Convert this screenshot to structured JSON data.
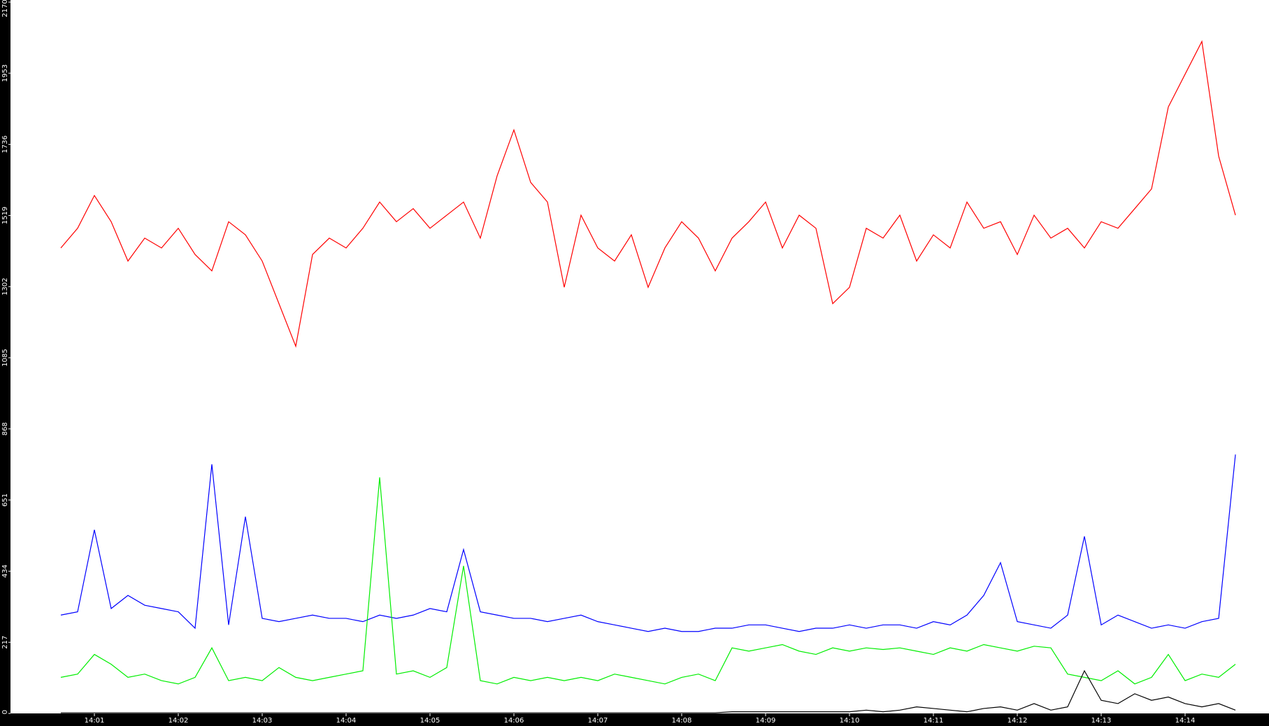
{
  "chart_data": {
    "type": "line",
    "x": [
      0.6,
      0.8,
      1,
      1.2,
      1.4,
      1.6,
      1.8,
      2,
      2.2,
      2.4,
      2.6,
      2.8,
      3,
      3.2,
      3.4,
      3.6,
      3.8,
      4,
      4.2,
      4.4,
      4.6,
      4.8,
      5,
      5.2,
      5.4,
      5.6,
      5.8,
      6,
      6.2,
      6.4,
      6.6,
      6.8,
      7,
      7.2,
      7.4,
      7.6,
      7.8,
      8,
      8.2,
      8.4,
      8.6,
      8.8,
      9,
      9.2,
      9.4,
      9.6,
      9.8,
      10,
      10.2,
      10.4,
      10.6,
      10.8,
      11,
      11.2,
      11.4,
      11.6,
      11.8,
      12,
      12.2,
      12.4,
      12.6,
      12.8,
      13,
      13.2,
      13.4,
      13.6,
      13.8,
      14,
      14.2,
      14.4,
      14.6
    ],
    "series": [
      {
        "color": "#ff0000",
        "values": [
          1420,
          1480,
          1580,
          1500,
          1380,
          1450,
          1420,
          1480,
          1400,
          1350,
          1500,
          1460,
          1380,
          1250,
          1120,
          1400,
          1450,
          1420,
          1480,
          1560,
          1500,
          1540,
          1480,
          1520,
          1560,
          1450,
          1640,
          1780,
          1620,
          1560,
          1300,
          1520,
          1420,
          1380,
          1460,
          1300,
          1420,
          1500,
          1450,
          1350,
          1450,
          1500,
          1560,
          1420,
          1520,
          1480,
          1250,
          1300,
          1480,
          1450,
          1520,
          1380,
          1460,
          1420,
          1560,
          1480,
          1500,
          1400,
          1520,
          1450,
          1480,
          1420,
          1500,
          1480,
          1540,
          1600,
          1850,
          1950,
          2050,
          1700,
          1520
        ]
      },
      {
        "color": "#0000ff",
        "values": [
          300,
          310,
          560,
          320,
          360,
          330,
          320,
          310,
          260,
          760,
          270,
          600,
          290,
          280,
          290,
          300,
          290,
          290,
          280,
          300,
          290,
          300,
          320,
          310,
          500,
          310,
          300,
          290,
          290,
          280,
          290,
          300,
          280,
          270,
          260,
          250,
          260,
          250,
          250,
          260,
          260,
          270,
          270,
          260,
          250,
          260,
          260,
          270,
          260,
          270,
          270,
          260,
          280,
          270,
          300,
          360,
          460,
          280,
          270,
          260,
          300,
          540,
          270,
          300,
          280,
          260,
          270,
          260,
          280,
          290,
          790
        ]
      },
      {
        "color": "#00ee00",
        "values": [
          110,
          120,
          180,
          150,
          110,
          120,
          100,
          90,
          110,
          200,
          100,
          110,
          100,
          140,
          110,
          100,
          110,
          120,
          130,
          720,
          120,
          130,
          110,
          140,
          450,
          100,
          90,
          110,
          100,
          110,
          100,
          110,
          100,
          120,
          110,
          100,
          90,
          110,
          120,
          100,
          200,
          190,
          200,
          210,
          190,
          180,
          200,
          190,
          200,
          195,
          200,
          190,
          180,
          200,
          190,
          210,
          200,
          190,
          205,
          200,
          120,
          110,
          100,
          130,
          90,
          110,
          180,
          100,
          120,
          110,
          150
        ]
      },
      {
        "color": "#000000",
        "values": [
          2,
          2,
          2,
          2,
          2,
          2,
          2,
          2,
          2,
          2,
          2,
          2,
          2,
          2,
          2,
          2,
          2,
          2,
          2,
          2,
          2,
          2,
          2,
          2,
          2,
          2,
          2,
          2,
          2,
          2,
          2,
          2,
          2,
          2,
          2,
          2,
          2,
          2,
          2,
          2,
          5,
          5,
          5,
          5,
          5,
          5,
          5,
          5,
          10,
          5,
          10,
          20,
          15,
          10,
          5,
          15,
          20,
          10,
          30,
          10,
          20,
          130,
          40,
          30,
          60,
          40,
          50,
          30,
          20,
          30,
          10
        ]
      }
    ],
    "xlim": [
      0,
      15
    ],
    "ylim": [
      0,
      2170
    ],
    "xticks": [
      {
        "value": 1,
        "label": "14:01"
      },
      {
        "value": 2,
        "label": "14:02"
      },
      {
        "value": 3,
        "label": "14:03"
      },
      {
        "value": 4,
        "label": "14:04"
      },
      {
        "value": 5,
        "label": "14:05"
      },
      {
        "value": 6,
        "label": "14:06"
      },
      {
        "value": 7,
        "label": "14:07"
      },
      {
        "value": 8,
        "label": "14:08"
      },
      {
        "value": 9,
        "label": "14:09"
      },
      {
        "value": 10,
        "label": "14:10"
      },
      {
        "value": 11,
        "label": "14:11"
      },
      {
        "value": 12,
        "label": "14:12"
      },
      {
        "value": 13,
        "label": "14:13"
      },
      {
        "value": 14,
        "label": "14:14"
      }
    ],
    "yticks": [
      0,
      217,
      434,
      651,
      868,
      1085,
      1302,
      1519,
      1736,
      1953,
      2170
    ]
  }
}
